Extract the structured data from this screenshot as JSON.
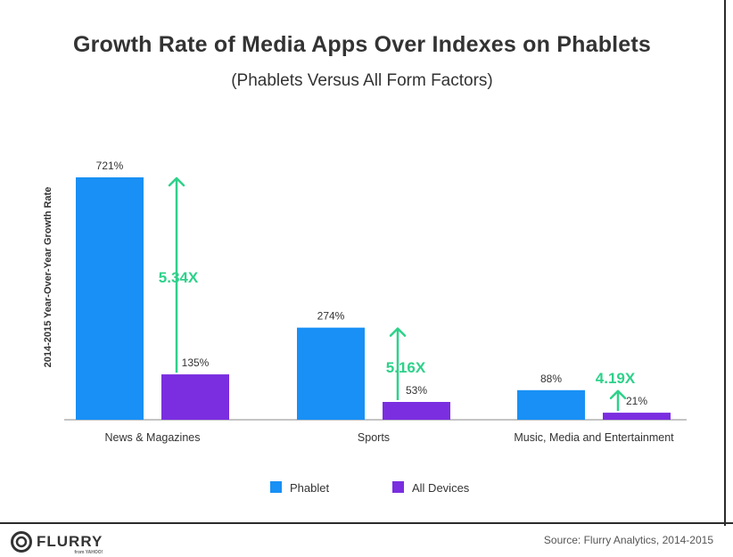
{
  "chart_data": {
    "type": "bar",
    "title": "Growth Rate of Media Apps Over Indexes on Phablets",
    "subtitle": "(Phablets Versus All Form Factors)",
    "ylabel": "2014-2015 Year-Over-Year Growth Rate",
    "xlabel": "",
    "categories": [
      "News & Magazines",
      "Sports",
      "Music, Media and Entertainment"
    ],
    "series": [
      {
        "name": "Phablet",
        "color": "#1890f5",
        "values": [
          721,
          274,
          88
        ],
        "labels": [
          "721%",
          "274%",
          "88%"
        ]
      },
      {
        "name": "All Devices",
        "color": "#7a2ee0",
        "values": [
          135,
          53,
          21
        ],
        "labels": [
          "135%",
          "53%",
          "21%"
        ]
      }
    ],
    "annotations": [
      "5.34X",
      "5.16X",
      "4.19X"
    ],
    "annotation_color": "#2ed18a",
    "ylim": [
      0,
      721
    ],
    "grid": false,
    "legend_position": "bottom"
  },
  "footer": {
    "brand": "FLURRY",
    "brand_sub": "from YAHOO!",
    "source": "Source: Flurry Analytics, 2014-2015"
  }
}
